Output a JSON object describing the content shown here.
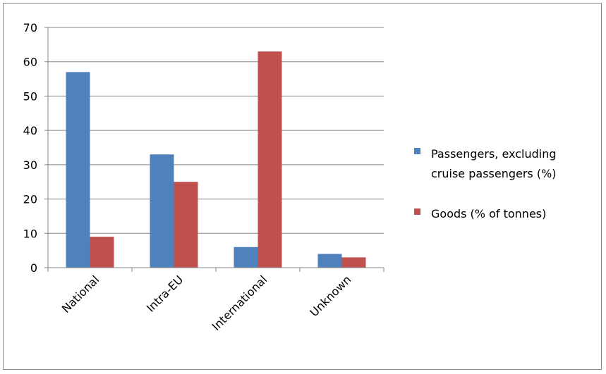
{
  "chart_data": {
    "type": "bar",
    "categories": [
      "National",
      "Intra-EU",
      "International",
      "Unknown"
    ],
    "series": [
      {
        "name": "Passengers, excluding cruise passengers (%)",
        "legend_lines": [
          "Passengers, excluding",
          "cruise passengers (%)"
        ],
        "color": "#4F81BD",
        "values": [
          57,
          33,
          6,
          4
        ]
      },
      {
        "name": "Goods (% of tonnes)",
        "legend_lines": [
          "Goods (% of tonnes)"
        ],
        "color": "#C0504D",
        "values": [
          9,
          25,
          63,
          3
        ]
      }
    ],
    "y_ticks": [
      "0",
      "10",
      "20",
      "30",
      "40",
      "50",
      "60",
      "70"
    ],
    "ylim": [
      0,
      70
    ],
    "grid": true,
    "legend_position": "right",
    "title": "",
    "xlabel": "",
    "ylabel": ""
  }
}
